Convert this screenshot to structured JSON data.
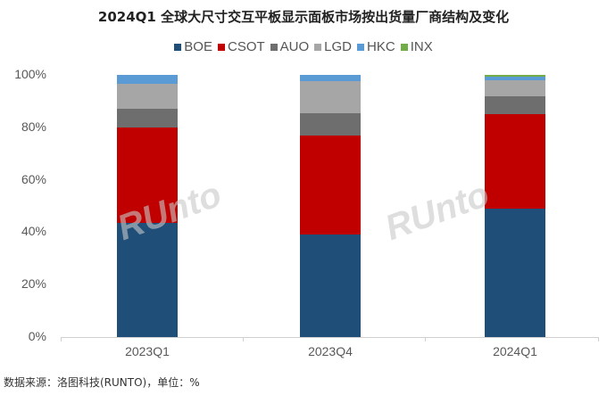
{
  "chart_data": {
    "type": "bar",
    "stacked": true,
    "title": "2024Q1 全球大尺寸交互平板显示面板市场按出货量厂商结构及变化",
    "categories": [
      "2023Q1",
      "2023Q4",
      "2024Q1"
    ],
    "series": [
      {
        "name": "BOE",
        "color": "#1F4E79",
        "values": [
          43.5,
          39,
          49
        ]
      },
      {
        "name": "CSOT",
        "color": "#C00000",
        "values": [
          36.5,
          38,
          36
        ]
      },
      {
        "name": "AUO",
        "color": "#6E6E6E",
        "values": [
          7,
          8.5,
          7
        ]
      },
      {
        "name": "LGD",
        "color": "#A6A6A6",
        "values": [
          9.5,
          12,
          6
        ]
      },
      {
        "name": "HKC",
        "color": "#5B9BD5",
        "values": [
          3.5,
          2.5,
          1.5
        ]
      },
      {
        "name": "INX",
        "color": "#70AD47",
        "values": [
          0,
          0,
          0.5
        ]
      }
    ],
    "yticks": [
      "0%",
      "20%",
      "40%",
      "60%",
      "80%",
      "100%"
    ],
    "ylim": [
      0,
      100
    ],
    "xlabel": "",
    "ylabel": "",
    "legend_position": "top",
    "grid": false
  },
  "source": "数据来源：洛图科技(RUNTO)，单位：%",
  "watermark": "RUNTO 洛图科技"
}
